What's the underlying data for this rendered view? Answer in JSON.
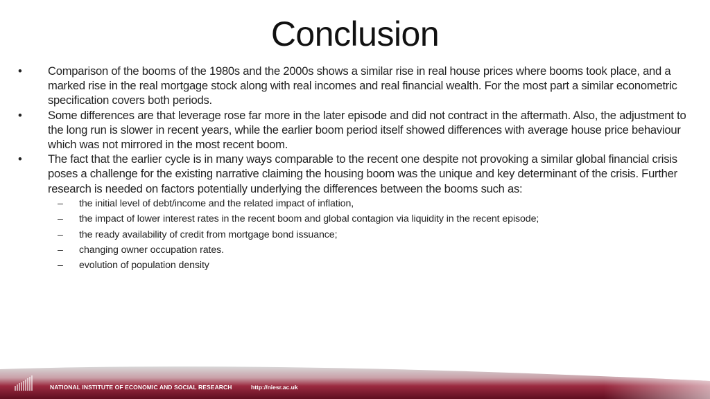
{
  "title": "Conclusion",
  "bullets": [
    {
      "marker": "•",
      "text": "Comparison of the booms of the 1980s and the 2000s shows a similar rise in real house prices where booms took place, and a marked rise in the real mortgage stock along with real incomes and real financial wealth. For the most part a similar econometric specification covers both periods."
    },
    {
      "marker": "•",
      "text": "Some differences are that leverage rose far more in the later episode and did not contract in the aftermath. Also, the adjustment to the long run is slower in recent years, while the earlier boom period itself showed differences with average house price behaviour which was not mirrored in the most recent boom."
    },
    {
      "marker": "•",
      "text": "The fact that the earlier cycle is in many ways comparable to the recent one despite not provoking a similar global financial crisis poses a challenge for the existing narrative claiming the housing boom was the unique and key determinant of the crisis. Further research is needed on factors potentially underlying the differences between the booms such as:"
    }
  ],
  "sub_bullets": [
    {
      "marker": "–",
      "text": "the initial level of debt/income and the related impact of inflation,"
    },
    {
      "marker": "–",
      "text": "the impact of lower interest rates in the recent boom and global contagion via liquidity in the recent episode;"
    },
    {
      "marker": "–",
      "text": "the ready availability of credit from mortgage bond issuance;"
    },
    {
      "marker": "–",
      "text": "changing owner occupation rates."
    },
    {
      "marker": "–",
      "text": "evolution of population density"
    }
  ],
  "footer": {
    "org": "NATIONAL INSTITUTE OF ECONOMIC AND SOCIAL RESEARCH",
    "url": "http://niesr.ac.uk",
    "brand_color": "#7a1428"
  }
}
